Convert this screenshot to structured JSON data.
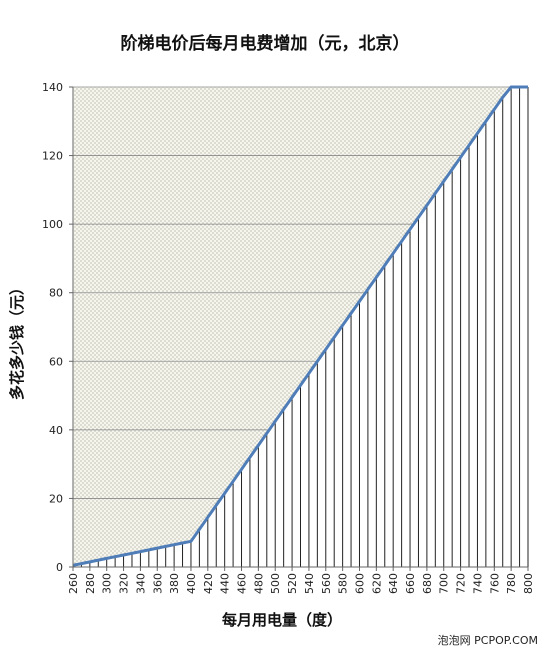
{
  "chart_data": {
    "type": "area",
    "title": "阶梯电价后每月电费增加（元，北京）",
    "xlabel": "每月用电量（度）",
    "ylabel": "多花多少钱（元）",
    "ylim": [
      0,
      140
    ],
    "yticks": [
      0,
      20,
      40,
      60,
      80,
      100,
      120,
      140
    ],
    "xlim": [
      260,
      800
    ],
    "xticks": [
      260,
      280,
      300,
      320,
      340,
      360,
      380,
      400,
      420,
      440,
      460,
      480,
      500,
      520,
      540,
      560,
      580,
      600,
      620,
      640,
      660,
      680,
      700,
      720,
      740,
      760,
      780,
      800
    ],
    "grid": true,
    "x": [
      260,
      270,
      280,
      290,
      300,
      310,
      320,
      330,
      340,
      350,
      360,
      370,
      380,
      390,
      400,
      410,
      420,
      430,
      440,
      450,
      460,
      470,
      480,
      490,
      500,
      510,
      520,
      530,
      540,
      550,
      560,
      570,
      580,
      590,
      600,
      610,
      620,
      630,
      640,
      650,
      660,
      670,
      680,
      690,
      700,
      710,
      720,
      730,
      740,
      750,
      760,
      770,
      780,
      790,
      800
    ],
    "series": [
      {
        "values": [
          0.5,
          1.0,
          1.5,
          2.0,
          2.5,
          3.0,
          3.5,
          4.0,
          4.5,
          5.0,
          5.5,
          6.0,
          6.5,
          7.0,
          7.5,
          11.0,
          14.5,
          18.0,
          21.5,
          25.0,
          28.5,
          32.0,
          35.5,
          39.0,
          42.5,
          46.0,
          49.5,
          53.0,
          56.5,
          60.0,
          63.5,
          67.0,
          70.5,
          74.0,
          77.5,
          81.0,
          84.5,
          88.0,
          91.5,
          95.0,
          98.5,
          102.0,
          105.5,
          109.0,
          112.5,
          116.0,
          119.5,
          123.0,
          126.5,
          130.0,
          133.5,
          137.0,
          140.5,
          144.0,
          147.5
        ]
      }
    ],
    "line_color": "#4f7db8",
    "hatch_color": "#222222",
    "plot_background": "#f3f3ea"
  },
  "watermark": "泡泡网 PCPOP.COM"
}
